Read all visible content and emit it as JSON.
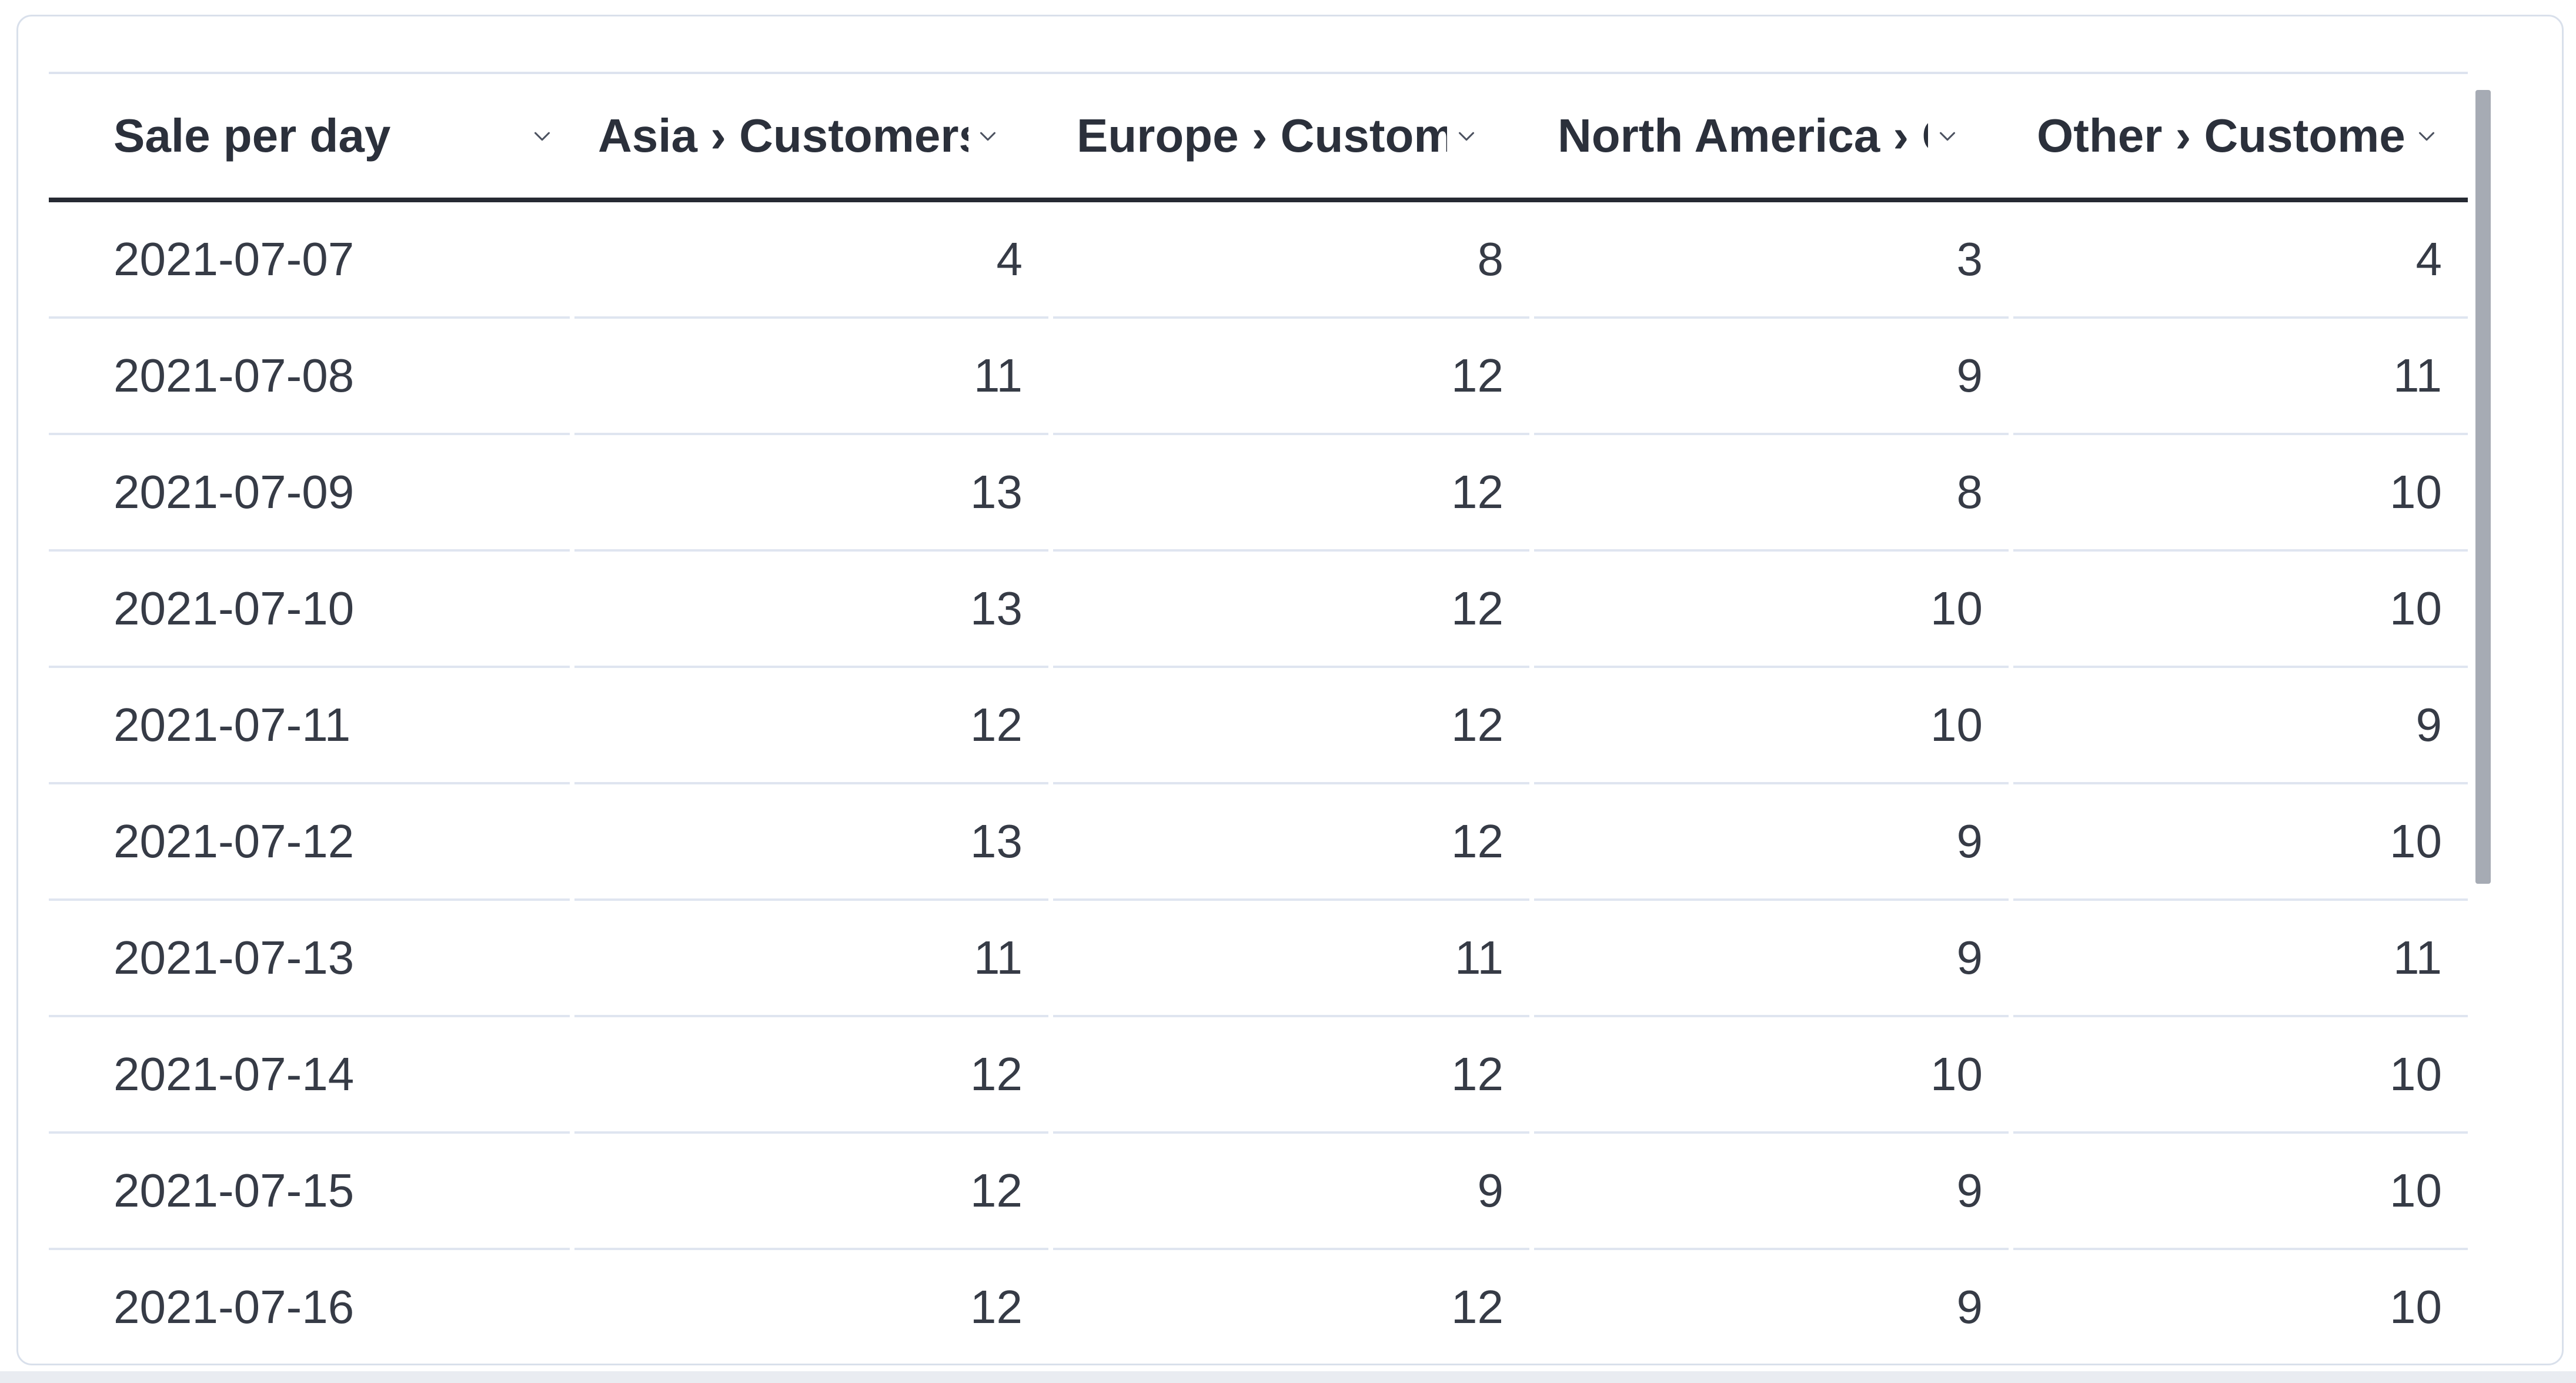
{
  "chart_data": {
    "type": "table",
    "title": "Sale per day",
    "categories": [
      "2021-07-07",
      "2021-07-08",
      "2021-07-09",
      "2021-07-10",
      "2021-07-11",
      "2021-07-12",
      "2021-07-13",
      "2021-07-14",
      "2021-07-15",
      "2021-07-16"
    ],
    "series": [
      {
        "name": "Asia › Customers",
        "values": [
          4,
          11,
          13,
          13,
          12,
          13,
          11,
          12,
          12,
          12
        ]
      },
      {
        "name": "Europe › Customers",
        "values": [
          8,
          12,
          12,
          12,
          12,
          12,
          11,
          12,
          9,
          12
        ]
      },
      {
        "name": "North America › Customers",
        "values": [
          3,
          9,
          8,
          10,
          10,
          9,
          9,
          10,
          9,
          9
        ]
      },
      {
        "name": "Other › Customers",
        "values": [
          4,
          11,
          10,
          10,
          9,
          10,
          11,
          10,
          10,
          10
        ]
      }
    ],
    "layout": {
      "first_column_align": "left",
      "value_columns_align": "right",
      "visible_rows": 10,
      "last_row_clipped": true
    }
  },
  "icons": {
    "header_sort": "chevron-down-icon"
  },
  "scrollbar": {
    "orientation": "vertical",
    "thumb_color": "#a6abb4"
  },
  "colors": {
    "text": "#363b46",
    "header_text": "#2b303b",
    "header_rule": "#262a33",
    "row_separator": "#dfe5f0",
    "card_border": "#d9e0eb",
    "page_bottom_strip": "#e9ecf1"
  }
}
